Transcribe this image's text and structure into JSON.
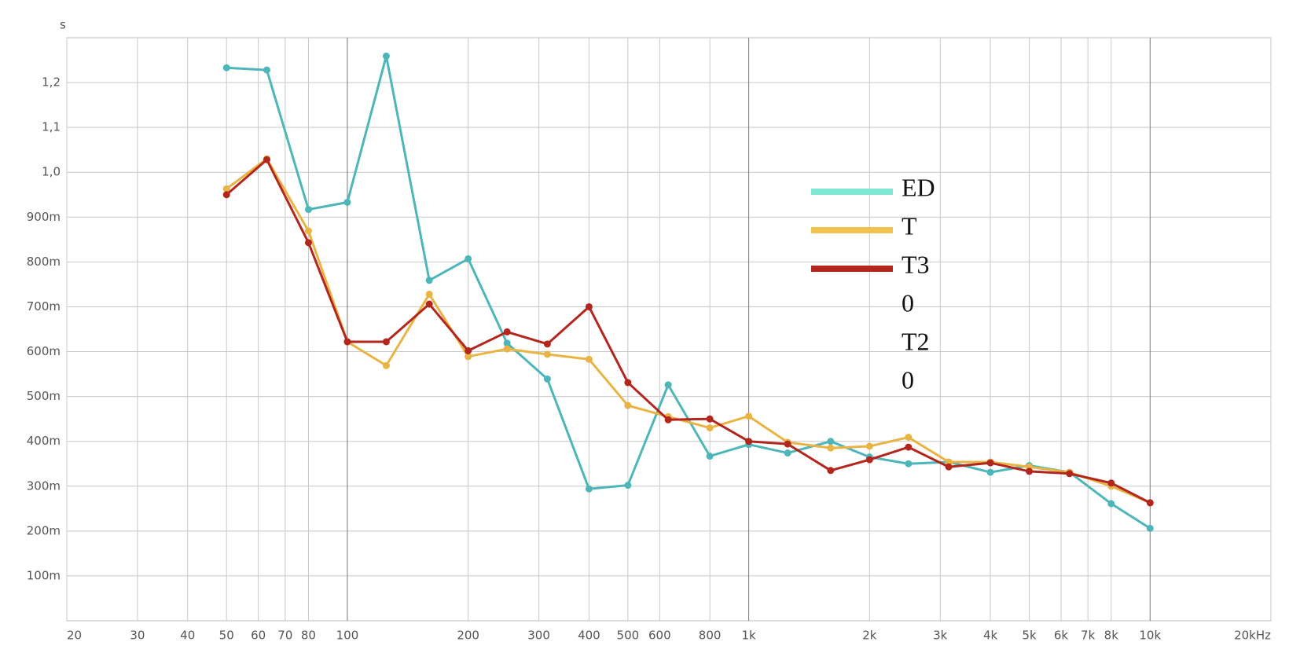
{
  "chart_data": {
    "type": "line",
    "y_unit": "s",
    "log_x": true,
    "grid": true,
    "x": [
      50,
      63,
      80,
      100,
      125,
      160,
      200,
      250,
      315,
      400,
      500,
      630,
      800,
      1000,
      1250,
      1600,
      2000,
      2500,
      3150,
      4000,
      5000,
      6300,
      8000,
      10000
    ],
    "series": [
      {
        "name": "ED",
        "color": "#4db6b8",
        "legend_color": "#7ee8d2",
        "values": [
          1.233,
          1.228,
          0.917,
          0.933,
          1.259,
          0.759,
          0.807,
          0.619,
          0.539,
          0.294,
          0.302,
          0.526,
          0.367,
          0.393,
          0.374,
          0.4,
          0.365,
          0.35,
          0.354,
          0.331,
          0.346,
          0.331,
          0.261,
          0.206
        ]
      },
      {
        "name": "T",
        "color": "#e9b443",
        "legend_color": "#f2c24e",
        "values": [
          0.963,
          1.03,
          0.869,
          0.622,
          0.569,
          0.728,
          0.589,
          0.606,
          0.594,
          0.583,
          0.48,
          0.455,
          0.43,
          0.456,
          0.398,
          0.385,
          0.389,
          0.409,
          0.354,
          0.354,
          0.343,
          0.331,
          0.3,
          0.263
        ]
      },
      {
        "name": "T3",
        "color": "#b3261e",
        "legend_color": "#b3261e",
        "values": [
          0.95,
          1.028,
          0.843,
          0.622,
          0.622,
          0.706,
          0.602,
          0.644,
          0.617,
          0.7,
          0.531,
          0.448,
          0.45,
          0.4,
          0.394,
          0.335,
          0.359,
          0.387,
          0.343,
          0.352,
          0.333,
          0.328,
          0.307,
          0.263
        ]
      }
    ],
    "legend_extra_text": [
      "0",
      "T2",
      "0"
    ],
    "xlim": [
      20,
      20000
    ],
    "xticks": [
      20,
      30,
      40,
      50,
      60,
      70,
      80,
      100,
      200,
      300,
      400,
      500,
      600,
      800,
      {
        "value": 1000,
        "label": "1k"
      },
      {
        "value": 2000,
        "label": "2k"
      },
      {
        "value": 3000,
        "label": "3k"
      },
      {
        "value": 4000,
        "label": "4k"
      },
      {
        "value": 5000,
        "label": "5k"
      },
      {
        "value": 6000,
        "label": "6k"
      },
      {
        "value": 7000,
        "label": "7k"
      },
      {
        "value": 8000,
        "label": "8k"
      },
      {
        "value": 10000,
        "label": "10k"
      },
      {
        "value": 20000,
        "label": "20kHz"
      }
    ],
    "ylim": [
      0,
      1.3
    ],
    "yticks": [
      {
        "value": 0.1,
        "label": "100m"
      },
      {
        "value": 0.2,
        "label": "200m"
      },
      {
        "value": 0.3,
        "label": "300m"
      },
      {
        "value": 0.4,
        "label": "400m"
      },
      {
        "value": 0.5,
        "label": "500m"
      },
      {
        "value": 0.6,
        "label": "600m"
      },
      {
        "value": 0.7,
        "label": "700m"
      },
      {
        "value": 0.8,
        "label": "800m"
      },
      {
        "value": 0.9,
        "label": "900m"
      },
      {
        "value": 1.0,
        "label": "1,0"
      },
      {
        "value": 1.1,
        "label": "1,1"
      },
      {
        "value": 1.2,
        "label": "1,2"
      }
    ]
  }
}
